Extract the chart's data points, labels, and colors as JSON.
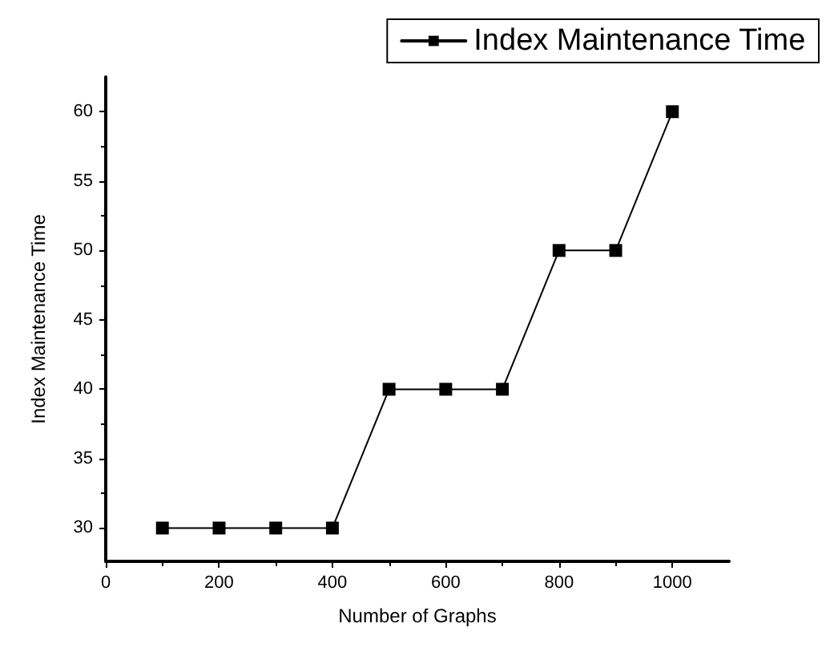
{
  "chart_data": {
    "type": "line",
    "xlabel": "Number of Graphs",
    "ylabel": "Index Maintenance Time",
    "x": [
      100,
      200,
      300,
      400,
      500,
      600,
      700,
      800,
      900,
      1000
    ],
    "series": [
      {
        "name": "Index Maintenance Time",
        "color": "#000000",
        "values": [
          30,
          30,
          30,
          30,
          40,
          40,
          40,
          50,
          50,
          60
        ]
      }
    ],
    "xlim": [
      0,
      1100
    ],
    "xticks": [
      0,
      200,
      400,
      600,
      800,
      1000
    ],
    "ylim": [
      27.6,
      62.5
    ],
    "yticks": [
      30,
      35,
      40,
      45,
      50,
      55,
      60
    ],
    "marker": "square",
    "line_style": "solid",
    "grid": false,
    "legend": "top right"
  }
}
